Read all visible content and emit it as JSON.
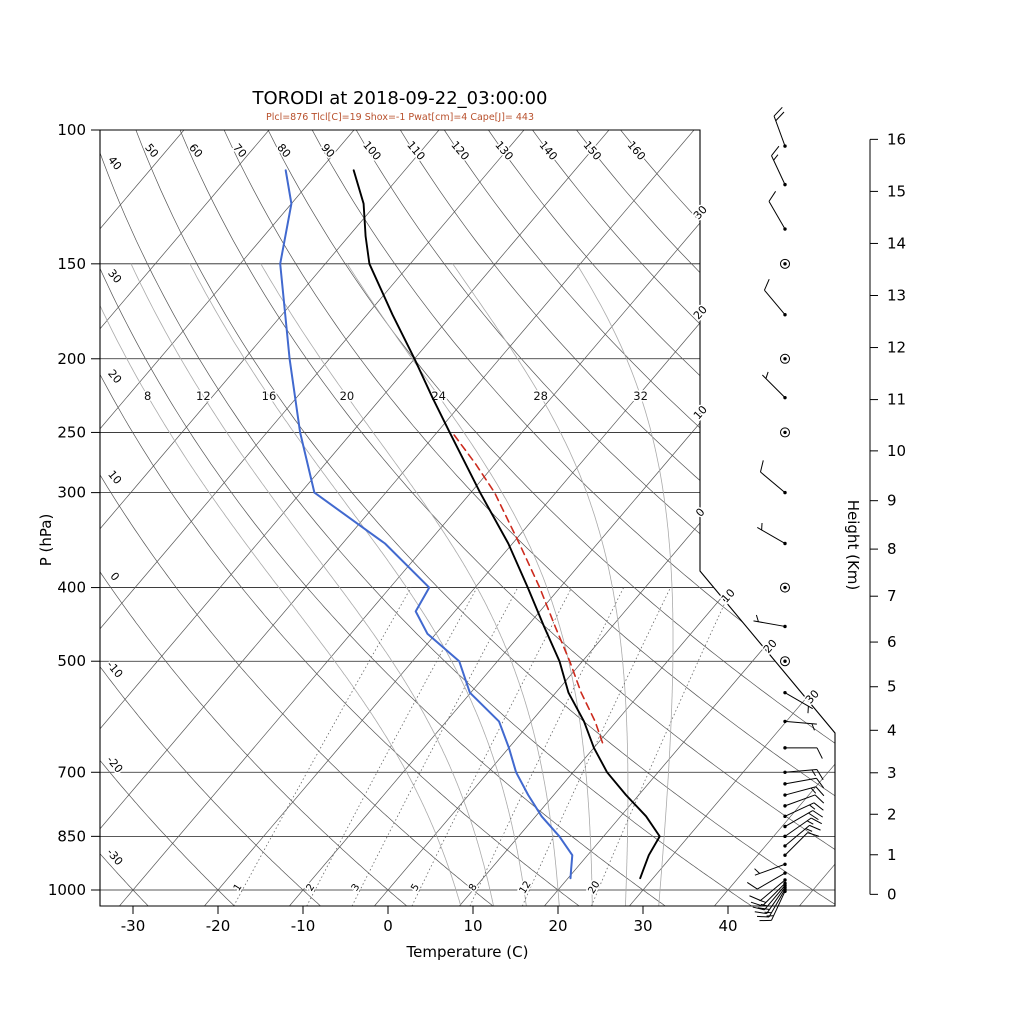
{
  "title": "TORODI at 2018-09-22_03:00:00",
  "subtitle": "Plcl=876 Tlcl[C]=19 Shox=-1 Pwat[cm]=4 Cape[J]= 443",
  "axes": {
    "pressure_label": "P (hPa)",
    "temperature_label": "Temperature (C)",
    "height_label": "Height (Km)",
    "pressure_ticks": [
      100,
      150,
      200,
      250,
      300,
      400,
      500,
      700,
      850,
      1000
    ],
    "temperature_ticks": [
      -30,
      -20,
      -10,
      0,
      10,
      20,
      30,
      40
    ],
    "height_ticks": [
      0,
      1,
      2,
      3,
      4,
      5,
      6,
      7,
      8,
      9,
      10,
      11,
      12,
      13,
      14,
      15,
      16
    ]
  },
  "chart_data": {
    "type": "skewt_log_p",
    "station": "TORODI",
    "time": "2018-09-22_03:00:00",
    "dry_adiabat_labels_top": [
      50,
      60,
      70,
      80,
      90,
      100,
      110,
      120,
      130,
      140,
      150,
      160
    ],
    "dry_adiabat_labels_left": [
      40,
      30,
      20,
      10,
      0,
      -10,
      -20,
      -30
    ],
    "isotherm_labels_right": [
      {
        "t": -30,
        "label": "30"
      },
      {
        "t": -20,
        "label": "20"
      },
      {
        "t": -10,
        "label": "10"
      },
      {
        "t": 0,
        "label": "0"
      }
    ],
    "isotherm_labels_notch": [
      10,
      20,
      30
    ],
    "moist_adiabats": [
      8,
      12,
      16,
      20,
      24,
      28,
      32
    ],
    "mixing_ratios": [
      1,
      2,
      3,
      5,
      8,
      12,
      20
    ],
    "temperature_profile": {
      "p": [
        965,
        940,
        900,
        850,
        800,
        750,
        700,
        650,
        600,
        550,
        500,
        450,
        400,
        350,
        300,
        250,
        225,
        200,
        175,
        150,
        138,
        125,
        113
      ],
      "t": [
        28.5,
        28.0,
        27.2,
        26.6,
        23.0,
        18.5,
        14.0,
        10.0,
        6.2,
        1.5,
        -2.7,
        -8.0,
        -13.8,
        -20.5,
        -28.9,
        -38.5,
        -44.0,
        -50.0,
        -57.0,
        -64.8,
        -68.0,
        -71.5,
        -76.0
      ]
    },
    "dewpoint_profile": {
      "p": [
        965,
        940,
        900,
        850,
        800,
        750,
        700,
        650,
        600,
        550,
        500,
        460,
        430,
        400,
        350,
        300,
        250,
        200,
        150,
        125,
        113
      ],
      "t": [
        20.3,
        19.5,
        18.2,
        14.8,
        10.7,
        7.0,
        3.3,
        0.0,
        -3.8,
        -10.1,
        -14.5,
        -21.0,
        -24.6,
        -25.4,
        -35.0,
        -48.4,
        -56.1,
        -64.7,
        -75.3,
        -80.0,
        -84.0
      ]
    },
    "parcel_path": {
      "p": [
        640,
        600,
        550,
        500,
        450,
        400,
        350,
        300,
        275,
        250
      ],
      "t": [
        10.5,
        7.5,
        3.0,
        -1.5,
        -6.7,
        -12.4,
        -19.2,
        -27.2,
        -32.3,
        -38.2
      ]
    },
    "winds": [
      {
        "p": 1004,
        "spd": 15,
        "dir": 205
      },
      {
        "p": 998,
        "spd": 15,
        "dir": 210
      },
      {
        "p": 992,
        "spd": 20,
        "dir": 215
      },
      {
        "p": 986,
        "spd": 15,
        "dir": 220
      },
      {
        "p": 980,
        "spd": 15,
        "dir": 225
      },
      {
        "p": 970,
        "spd": 10,
        "dir": 230
      },
      {
        "p": 950,
        "spd": 10,
        "dir": 240
      },
      {
        "p": 925,
        "spd": 5,
        "dir": 250
      },
      {
        "p": 900,
        "spd": 10,
        "dir": 45
      },
      {
        "p": 875,
        "spd": 15,
        "dir": 50
      },
      {
        "p": 850,
        "spd": 15,
        "dir": 55
      },
      {
        "p": 825,
        "spd": 20,
        "dir": 60
      },
      {
        "p": 800,
        "spd": 15,
        "dir": 65
      },
      {
        "p": 775,
        "spd": 10,
        "dir": 70
      },
      {
        "p": 750,
        "spd": 15,
        "dir": 75
      },
      {
        "p": 725,
        "spd": 10,
        "dir": 80
      },
      {
        "p": 700,
        "spd": 15,
        "dir": 85
      },
      {
        "p": 650,
        "spd": 10,
        "dir": 90
      },
      {
        "p": 600,
        "spd": 5,
        "dir": 95
      },
      {
        "p": 550,
        "spd": 5,
        "dir": 120
      },
      {
        "p": 500,
        "spd": 0,
        "dir": 0
      },
      {
        "p": 450,
        "spd": 5,
        "dir": 280
      },
      {
        "p": 400,
        "spd": 0,
        "dir": 0
      },
      {
        "p": 350,
        "spd": 5,
        "dir": 300
      },
      {
        "p": 300,
        "spd": 10,
        "dir": 310
      },
      {
        "p": 250,
        "spd": 0,
        "dir": 0
      },
      {
        "p": 225,
        "spd": 5,
        "dir": 315
      },
      {
        "p": 200,
        "spd": 0,
        "dir": 0
      },
      {
        "p": 175,
        "spd": 10,
        "dir": 320
      },
      {
        "p": 150,
        "spd": 0,
        "dir": 0
      },
      {
        "p": 135,
        "spd": 10,
        "dir": 330
      },
      {
        "p": 118,
        "spd": 15,
        "dir": 335
      },
      {
        "p": 105,
        "spd": 20,
        "dir": 340
      }
    ],
    "colors": {
      "temperature": "#000000",
      "dewpoint": "#4169cf",
      "parcel": "#cc2a1d",
      "subtitle": "#b8502c"
    }
  }
}
